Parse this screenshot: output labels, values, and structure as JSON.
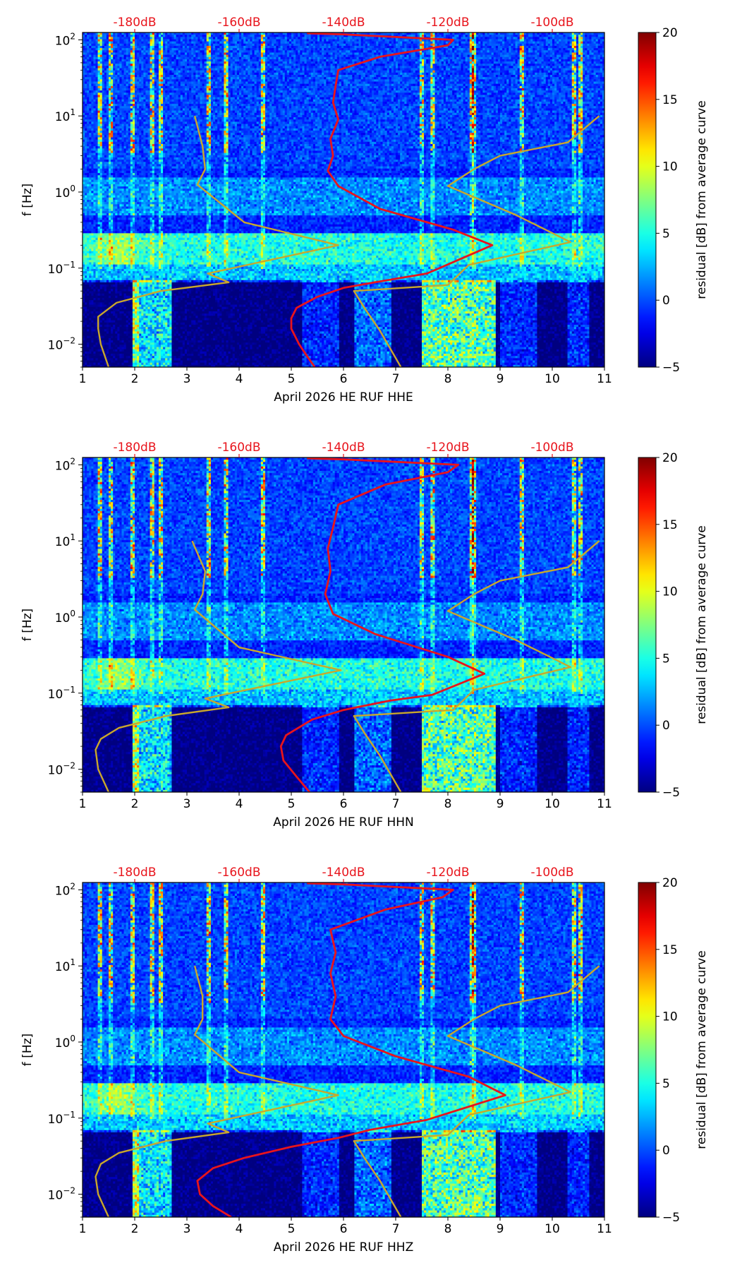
{
  "chart_data": [
    {
      "type": "heatmap",
      "title": "",
      "xlabel": "April 2026 HE RUF  HHE",
      "ylabel": "f [Hz]",
      "xlim": [
        1,
        11
      ],
      "ylim": [
        0.005,
        125
      ],
      "yscale": "log",
      "xticks": [
        "1",
        "2",
        "3",
        "4",
        "5",
        "6",
        "7",
        "8",
        "9",
        "10",
        "11"
      ],
      "yticks": [
        {
          "value": 0.01,
          "base": "10",
          "exp": "−2"
        },
        {
          "value": 0.1,
          "base": "10",
          "exp": "−1"
        },
        {
          "value": 1,
          "base": "10",
          "exp": "0"
        },
        {
          "value": 10,
          "base": "10",
          "exp": "1"
        },
        {
          "value": 100,
          "base": "10",
          "exp": "2"
        }
      ],
      "top_axis": {
        "color": "#e8141c",
        "ticks": [
          {
            "x": 2,
            "label": "-180dB"
          },
          {
            "x": 4,
            "label": "-160dB"
          },
          {
            "x": 6,
            "label": "-140dB"
          },
          {
            "x": 8,
            "label": "-120dB"
          },
          {
            "x": 10,
            "label": "-100dB"
          }
        ]
      },
      "colorbar": {
        "label": "residual [dB] from average curve",
        "min": -5,
        "max": 20,
        "ticks": [
          "−5",
          "0",
          "5",
          "10",
          "15",
          "20"
        ],
        "colormap": "jet"
      },
      "series": [
        {
          "color": "#e8141c",
          "points": [
            [
              5.45,
              0.005
            ],
            [
              5.3,
              0.007
            ],
            [
              5.15,
              0.01
            ],
            [
              5.0,
              0.016
            ],
            [
              5.0,
              0.022
            ],
            [
              5.1,
              0.03
            ],
            [
              5.5,
              0.042
            ],
            [
              6.0,
              0.055
            ],
            [
              6.6,
              0.065
            ],
            [
              7.6,
              0.085
            ],
            [
              8.85,
              0.2
            ],
            [
              8.1,
              0.32
            ],
            [
              6.7,
              0.6
            ],
            [
              5.9,
              1.2
            ],
            [
              5.7,
              1.9
            ],
            [
              5.8,
              3
            ],
            [
              5.75,
              5
            ],
            [
              5.9,
              9
            ],
            [
              5.8,
              15
            ],
            [
              5.85,
              25
            ],
            [
              5.9,
              40
            ],
            [
              6.7,
              60
            ],
            [
              8.0,
              85
            ],
            [
              8.1,
              100
            ],
            [
              6.0,
              118
            ],
            [
              5.3,
              122
            ]
          ]
        },
        {
          "color": "#c9a72c",
          "points": [
            [
              1.5,
              0.005
            ],
            [
              1.35,
              0.01
            ],
            [
              1.3,
              0.016
            ],
            [
              1.3,
              0.023
            ],
            [
              1.65,
              0.035
            ],
            [
              2.5,
              0.05
            ],
            [
              3.8,
              0.065
            ],
            [
              3.4,
              0.085
            ],
            [
              5.9,
              0.2
            ],
            [
              4.1,
              0.4
            ],
            [
              3.2,
              1.25
            ],
            [
              3.35,
              2
            ],
            [
              3.3,
              4
            ],
            [
              3.15,
              10
            ]
          ]
        },
        {
          "color": "#c9a72c",
          "points": [
            [
              7.1,
              0.005
            ],
            [
              6.7,
              0.015
            ],
            [
              6.4,
              0.03
            ],
            [
              6.2,
              0.05
            ],
            [
              8.0,
              0.06
            ],
            [
              8.4,
              0.11
            ],
            [
              10.35,
              0.22
            ],
            [
              9.3,
              0.5
            ],
            [
              8.0,
              1.2
            ],
            [
              8.5,
              2
            ],
            [
              9.0,
              3
            ],
            [
              10.3,
              4.5
            ],
            [
              10.9,
              10
            ]
          ]
        }
      ]
    },
    {
      "type": "heatmap",
      "title": "",
      "xlabel": "April 2026 HE RUF  HHN",
      "ylabel": "f [Hz]",
      "xlim": [
        1,
        11
      ],
      "ylim": [
        0.005,
        125
      ],
      "yscale": "log",
      "xticks": [
        "1",
        "2",
        "3",
        "4",
        "5",
        "6",
        "7",
        "8",
        "9",
        "10",
        "11"
      ],
      "yticks": [
        {
          "value": 0.01,
          "base": "10",
          "exp": "−2"
        },
        {
          "value": 0.1,
          "base": "10",
          "exp": "−1"
        },
        {
          "value": 1,
          "base": "10",
          "exp": "0"
        },
        {
          "value": 10,
          "base": "10",
          "exp": "1"
        },
        {
          "value": 100,
          "base": "10",
          "exp": "2"
        }
      ],
      "top_axis": {
        "color": "#e8141c",
        "ticks": [
          {
            "x": 2,
            "label": "-180dB"
          },
          {
            "x": 4,
            "label": "-160dB"
          },
          {
            "x": 6,
            "label": "-140dB"
          },
          {
            "x": 8,
            "label": "-120dB"
          },
          {
            "x": 10,
            "label": "-100dB"
          }
        ]
      },
      "colorbar": {
        "label": "residual [dB] from average curve",
        "min": -5,
        "max": 20,
        "ticks": [
          "−5",
          "0",
          "5",
          "10",
          "15",
          "20"
        ],
        "colormap": "jet"
      },
      "series": [
        {
          "color": "#e8141c",
          "points": [
            [
              5.35,
              0.005
            ],
            [
              5.1,
              0.008
            ],
            [
              4.85,
              0.013
            ],
            [
              4.8,
              0.02
            ],
            [
              4.9,
              0.028
            ],
            [
              5.4,
              0.045
            ],
            [
              6.0,
              0.06
            ],
            [
              6.9,
              0.08
            ],
            [
              7.7,
              0.095
            ],
            [
              8.7,
              0.18
            ],
            [
              8.0,
              0.3
            ],
            [
              6.6,
              0.6
            ],
            [
              5.8,
              1.1
            ],
            [
              5.65,
              2
            ],
            [
              5.75,
              4
            ],
            [
              5.7,
              8
            ],
            [
              5.8,
              15
            ],
            [
              5.9,
              30
            ],
            [
              6.8,
              55
            ],
            [
              8.0,
              80
            ],
            [
              8.2,
              100
            ],
            [
              6.0,
              118
            ],
            [
              5.3,
              122
            ]
          ]
        },
        {
          "color": "#c9a72c",
          "points": [
            [
              1.5,
              0.005
            ],
            [
              1.3,
              0.01
            ],
            [
              1.25,
              0.018
            ],
            [
              1.35,
              0.025
            ],
            [
              1.7,
              0.035
            ],
            [
              2.6,
              0.05
            ],
            [
              3.8,
              0.065
            ],
            [
              3.35,
              0.085
            ],
            [
              5.95,
              0.2
            ],
            [
              4.0,
              0.4
            ],
            [
              3.15,
              1.25
            ],
            [
              3.3,
              2
            ],
            [
              3.35,
              4
            ],
            [
              3.1,
              10
            ]
          ]
        },
        {
          "color": "#c9a72c",
          "points": [
            [
              7.1,
              0.005
            ],
            [
              6.7,
              0.015
            ],
            [
              6.4,
              0.03
            ],
            [
              6.2,
              0.05
            ],
            [
              8.1,
              0.06
            ],
            [
              8.5,
              0.11
            ],
            [
              10.35,
              0.22
            ],
            [
              9.3,
              0.5
            ],
            [
              8.0,
              1.2
            ],
            [
              8.5,
              2
            ],
            [
              9.0,
              3
            ],
            [
              10.3,
              4.5
            ],
            [
              10.9,
              10
            ]
          ]
        }
      ]
    },
    {
      "type": "heatmap",
      "title": "",
      "xlabel": "April 2026 HE RUF  HHZ",
      "ylabel": "f [Hz]",
      "xlim": [
        1,
        11
      ],
      "ylim": [
        0.005,
        125
      ],
      "yscale": "log",
      "xticks": [
        "1",
        "2",
        "3",
        "4",
        "5",
        "6",
        "7",
        "8",
        "9",
        "10",
        "11"
      ],
      "yticks": [
        {
          "value": 0.01,
          "base": "10",
          "exp": "−2"
        },
        {
          "value": 0.1,
          "base": "10",
          "exp": "−1"
        },
        {
          "value": 1,
          "base": "10",
          "exp": "0"
        },
        {
          "value": 10,
          "base": "10",
          "exp": "1"
        },
        {
          "value": 100,
          "base": "10",
          "exp": "2"
        }
      ],
      "top_axis": {
        "color": "#e8141c",
        "ticks": [
          {
            "x": 2,
            "label": "-180dB"
          },
          {
            "x": 4,
            "label": "-160dB"
          },
          {
            "x": 6,
            "label": "-140dB"
          },
          {
            "x": 8,
            "label": "-120dB"
          },
          {
            "x": 10,
            "label": "-100dB"
          }
        ]
      },
      "colorbar": {
        "label": "residual [dB] from average curve",
        "min": -5,
        "max": 20,
        "ticks": [
          "−5",
          "0",
          "5",
          "10",
          "15",
          "20"
        ],
        "colormap": "jet"
      },
      "series": [
        {
          "color": "#e8141c",
          "points": [
            [
              3.85,
              0.005
            ],
            [
              3.5,
              0.007
            ],
            [
              3.25,
              0.01
            ],
            [
              3.2,
              0.015
            ],
            [
              3.5,
              0.022
            ],
            [
              4.1,
              0.03
            ],
            [
              5.0,
              0.042
            ],
            [
              5.9,
              0.055
            ],
            [
              6.5,
              0.07
            ],
            [
              7.6,
              0.095
            ],
            [
              9.1,
              0.2
            ],
            [
              8.4,
              0.35
            ],
            [
              7.0,
              0.65
            ],
            [
              6.0,
              1.2
            ],
            [
              5.75,
              2
            ],
            [
              5.85,
              4
            ],
            [
              5.75,
              8
            ],
            [
              5.85,
              15
            ],
            [
              5.75,
              30
            ],
            [
              6.8,
              55
            ],
            [
              7.9,
              80
            ],
            [
              8.1,
              100
            ],
            [
              6.0,
              118
            ],
            [
              5.3,
              122
            ]
          ]
        },
        {
          "color": "#c9a72c",
          "points": [
            [
              1.5,
              0.005
            ],
            [
              1.3,
              0.01
            ],
            [
              1.25,
              0.017
            ],
            [
              1.35,
              0.025
            ],
            [
              1.7,
              0.035
            ],
            [
              2.6,
              0.05
            ],
            [
              3.8,
              0.065
            ],
            [
              3.4,
              0.085
            ],
            [
              5.9,
              0.2
            ],
            [
              4.0,
              0.4
            ],
            [
              3.15,
              1.25
            ],
            [
              3.3,
              2
            ],
            [
              3.3,
              4
            ],
            [
              3.15,
              10
            ]
          ]
        },
        {
          "color": "#c9a72c",
          "points": [
            [
              7.1,
              0.005
            ],
            [
              6.7,
              0.015
            ],
            [
              6.4,
              0.03
            ],
            [
              6.2,
              0.05
            ],
            [
              8.0,
              0.06
            ],
            [
              8.4,
              0.11
            ],
            [
              10.35,
              0.22
            ],
            [
              9.3,
              0.5
            ],
            [
              8.0,
              1.2
            ],
            [
              8.5,
              2
            ],
            [
              9.0,
              3
            ],
            [
              10.3,
              4.5
            ],
            [
              10.9,
              10
            ]
          ]
        }
      ]
    }
  ]
}
